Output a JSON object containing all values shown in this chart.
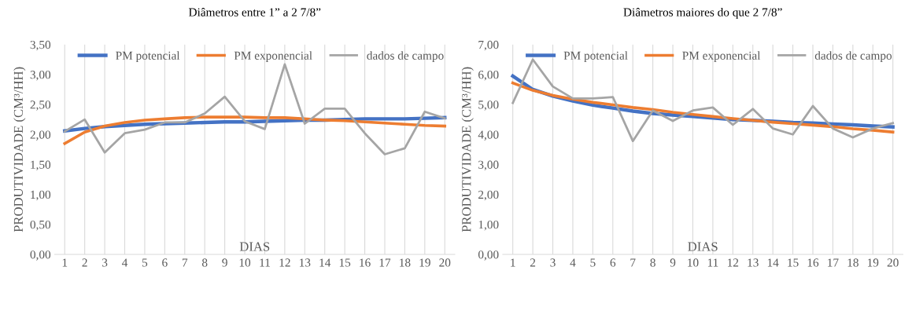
{
  "chart_data": [
    {
      "type": "line",
      "title": "Diâmetros entre 1” a 2 7/8”",
      "xlabel": "DIAS",
      "ylabel": "PRODUTIVIDADE (CM³/HH)",
      "categories": [
        "1",
        "2",
        "3",
        "4",
        "5",
        "6",
        "7",
        "8",
        "9",
        "10",
        "11",
        "12",
        "13",
        "14",
        "15",
        "16",
        "17",
        "18",
        "19",
        "20"
      ],
      "series": [
        {
          "name": "PM potencial",
          "color": "#4472c4",
          "values": [
            2.06,
            2.1,
            2.13,
            2.15,
            2.17,
            2.18,
            2.19,
            2.2,
            2.21,
            2.21,
            2.22,
            2.23,
            2.24,
            2.24,
            2.25,
            2.26,
            2.26,
            2.26,
            2.27,
            2.28
          ]
        },
        {
          "name": "PM exponencial",
          "color": "#ed7d31",
          "values": [
            1.85,
            2.04,
            2.14,
            2.2,
            2.24,
            2.26,
            2.28,
            2.29,
            2.29,
            2.29,
            2.28,
            2.28,
            2.26,
            2.24,
            2.23,
            2.21,
            2.19,
            2.17,
            2.15,
            2.14
          ]
        },
        {
          "name": "dados de campo",
          "color": "#a5a5a5",
          "values": [
            2.05,
            2.25,
            1.7,
            2.02,
            2.08,
            2.2,
            2.2,
            2.35,
            2.63,
            2.22,
            2.09,
            3.17,
            2.18,
            2.43,
            2.43,
            2.02,
            1.67,
            1.77,
            2.38,
            2.27
          ]
        }
      ],
      "ylim": [
        0,
        3.5
      ],
      "yticks": [
        {
          "value": 0,
          "label": "0,00"
        },
        {
          "value": 0.5,
          "label": "0,50"
        },
        {
          "value": 1,
          "label": "1,00"
        },
        {
          "value": 1.5,
          "label": "1,50"
        },
        {
          "value": 2,
          "label": "2,00"
        },
        {
          "value": 2.5,
          "label": "2,50"
        },
        {
          "value": 3,
          "label": "3,00"
        },
        {
          "value": 3.5,
          "label": "3,50"
        }
      ],
      "grid": "x",
      "legend": "top right"
    },
    {
      "type": "line",
      "title": "Diâmetros maiores do que 2 7/8”",
      "xlabel": "DIAS",
      "ylabel": "PRODUTIVIDADE (CM³/HH)",
      "categories": [
        "1",
        "2",
        "3",
        "4",
        "5",
        "6",
        "7",
        "8",
        "9",
        "10",
        "11",
        "12",
        "13",
        "14",
        "15",
        "16",
        "17",
        "18",
        "19",
        "20"
      ],
      "series": [
        {
          "name": "PM potencial",
          "color": "#4472c4",
          "values": [
            5.95,
            5.5,
            5.28,
            5.12,
            4.98,
            4.88,
            4.78,
            4.7,
            4.65,
            4.6,
            4.55,
            4.5,
            4.47,
            4.44,
            4.4,
            4.38,
            4.35,
            4.32,
            4.28,
            4.25
          ]
        },
        {
          "name": "PM exponencial",
          "color": "#ed7d31",
          "values": [
            5.72,
            5.47,
            5.3,
            5.18,
            5.07,
            4.99,
            4.9,
            4.83,
            4.74,
            4.67,
            4.6,
            4.53,
            4.47,
            4.41,
            4.36,
            4.31,
            4.26,
            4.19,
            4.14,
            4.08
          ]
        },
        {
          "name": "dados de campo",
          "color": "#a5a5a5",
          "values": [
            5.05,
            6.5,
            5.6,
            5.2,
            5.2,
            5.25,
            3.78,
            4.8,
            4.45,
            4.8,
            4.9,
            4.32,
            4.85,
            4.2,
            4.0,
            4.95,
            4.2,
            3.9,
            4.2,
            4.38
          ]
        }
      ],
      "ylim": [
        0,
        7
      ],
      "yticks": [
        {
          "value": 0,
          "label": "0,00"
        },
        {
          "value": 1,
          "label": "1,00"
        },
        {
          "value": 2,
          "label": "2,00"
        },
        {
          "value": 3,
          "label": "3,00"
        },
        {
          "value": 4,
          "label": "4,00"
        },
        {
          "value": 5,
          "label": "5,00"
        },
        {
          "value": 6,
          "label": "6,00"
        },
        {
          "value": 7,
          "label": "7,00"
        }
      ],
      "grid": "x",
      "legend": "top right"
    }
  ]
}
